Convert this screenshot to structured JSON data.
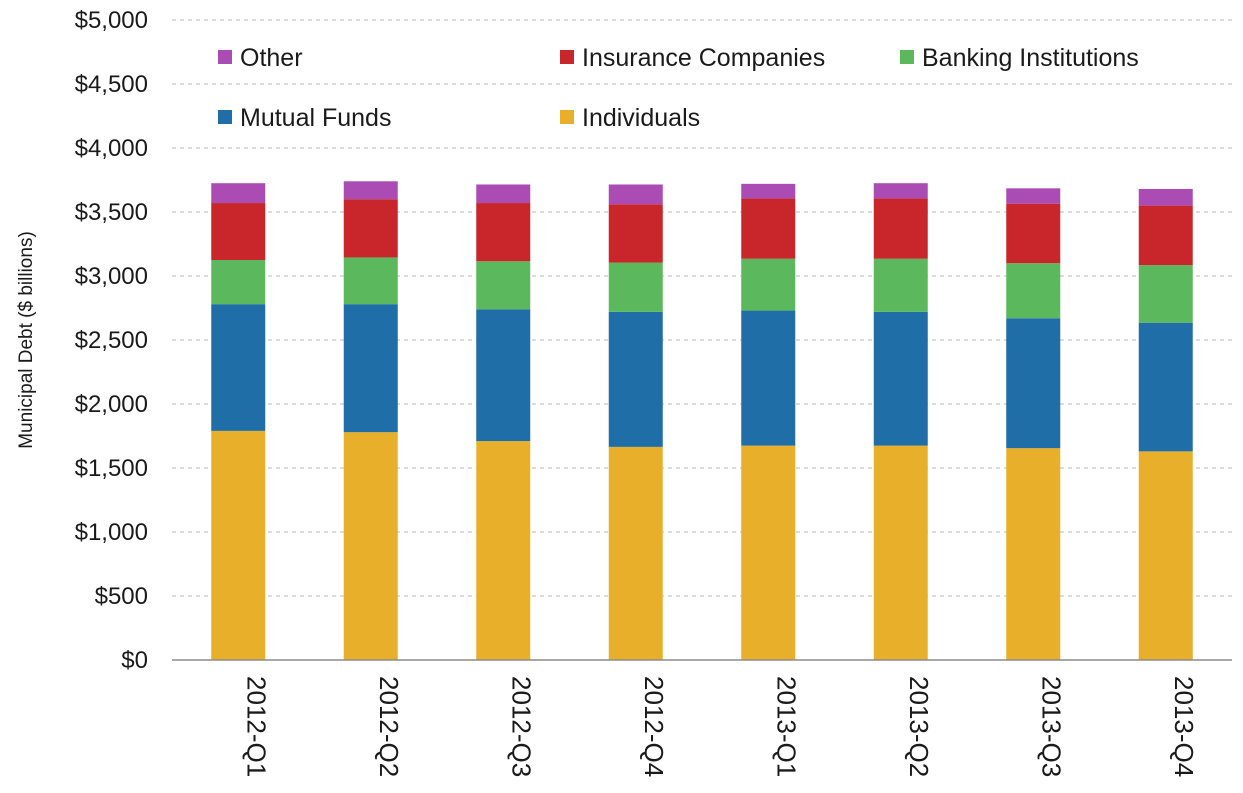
{
  "chart_data": {
    "type": "bar",
    "stacked": true,
    "title": "",
    "xlabel": "",
    "ylabel": "Municipal  Debt ($ billions)",
    "ylim": [
      0,
      5000
    ],
    "yticks": [
      0,
      500,
      1000,
      1500,
      2000,
      2500,
      3000,
      3500,
      4000,
      4500,
      5000
    ],
    "ytick_labels": [
      "$0",
      "$500",
      "$1,000",
      "$1,500",
      "$2,000",
      "$2,500",
      "$3,000",
      "$3,500",
      "$4,000",
      "$4,500",
      "$5,000"
    ],
    "grid": "horizontal dashed",
    "legend_position": "top",
    "categories": [
      "2012-Q1",
      "2012-Q2",
      "2012-Q3",
      "2012-Q4",
      "2013-Q1",
      "2013-Q2",
      "2013-Q3",
      "2013-Q4"
    ],
    "series": [
      {
        "name": "Individuals",
        "color": "#e8b02a",
        "values": [
          1790,
          1780,
          1710,
          1665,
          1675,
          1675,
          1655,
          1630
        ]
      },
      {
        "name": "Mutual Funds",
        "color": "#1f6ea8",
        "values": [
          990,
          1000,
          1030,
          1055,
          1055,
          1045,
          1015,
          1005
        ]
      },
      {
        "name": "Banking Institutions",
        "color": "#5cb85c",
        "values": [
          345,
          365,
          375,
          385,
          405,
          415,
          430,
          450
        ]
      },
      {
        "name": "Insurance Companies",
        "color": "#c9262c",
        "values": [
          445,
          455,
          455,
          455,
          470,
          470,
          465,
          465
        ]
      },
      {
        "name": "Other",
        "color": "#ab4cb5",
        "values": [
          155,
          140,
          145,
          155,
          115,
          120,
          120,
          130
        ]
      }
    ],
    "legend_entries": [
      {
        "name": "Other",
        "color": "#ab4cb5"
      },
      {
        "name": "Insurance Companies",
        "color": "#c9262c"
      },
      {
        "name": "Banking Institutions",
        "color": "#5cb85c"
      },
      {
        "name": "Mutual Funds",
        "color": "#1f6ea8"
      },
      {
        "name": "Individuals",
        "color": "#e8b02a"
      }
    ]
  }
}
